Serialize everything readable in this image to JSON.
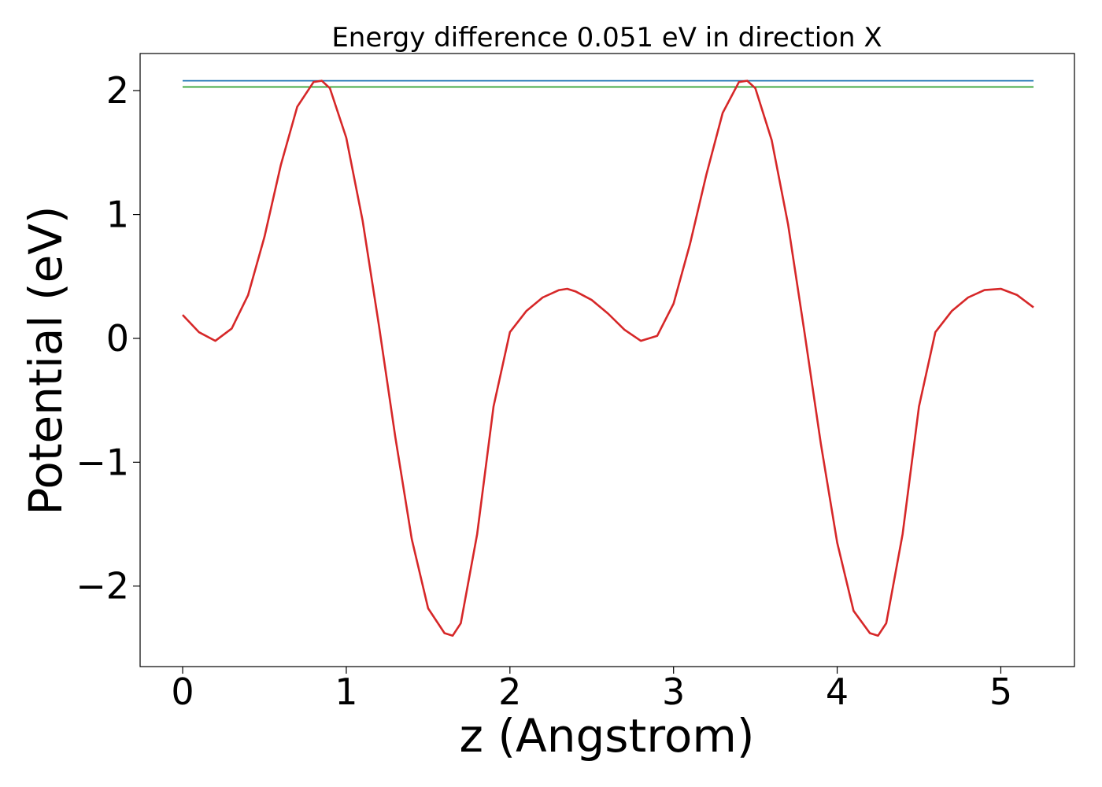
{
  "chart_data": {
    "type": "line",
    "title": "Energy difference 0.051 eV in direction X",
    "xlabel": "z (Angstrom)",
    "ylabel": "Potential (eV)",
    "xlim": [
      -0.26,
      5.45
    ],
    "ylim": [
      -2.65,
      2.3
    ],
    "xticks": [
      0,
      1,
      2,
      3,
      4,
      5
    ],
    "xtick_labels": [
      "0",
      "1",
      "2",
      "3",
      "4",
      "5"
    ],
    "yticks": [
      -2,
      -1,
      0,
      1,
      2
    ],
    "ytick_labels": [
      "−2",
      "−1",
      "0",
      "1",
      "2"
    ],
    "grid": false,
    "legend": "none",
    "series": [
      {
        "color": "#1f77b4",
        "x": [
          0,
          5.2
        ],
        "y": [
          2.08,
          2.08
        ]
      },
      {
        "color": "#2ca02c",
        "x": [
          0,
          5.2
        ],
        "y": [
          2.03,
          2.03
        ]
      },
      {
        "color": "#d62728",
        "x": [
          0,
          0.1,
          0.2,
          0.3,
          0.4,
          0.5,
          0.6,
          0.7,
          0.8,
          0.85,
          0.9,
          1.0,
          1.1,
          1.2,
          1.3,
          1.4,
          1.5,
          1.6,
          1.65,
          1.7,
          1.8,
          1.9,
          2.0,
          2.1,
          2.2,
          2.3,
          2.35,
          2.4,
          2.5,
          2.6,
          2.7,
          2.8,
          2.9,
          3.0,
          3.1,
          3.2,
          3.3,
          3.4,
          3.45,
          3.5,
          3.6,
          3.7,
          3.8,
          3.9,
          4.0,
          4.1,
          4.2,
          4.25,
          4.3,
          4.4,
          4.5,
          4.6,
          4.7,
          4.8,
          4.9,
          5.0,
          5.1,
          5.2
        ],
        "y": [
          0.19,
          0.05,
          -0.02,
          0.08,
          0.35,
          0.82,
          1.4,
          1.87,
          2.07,
          2.08,
          2.02,
          1.62,
          0.95,
          0.1,
          -0.8,
          -1.62,
          -2.18,
          -2.38,
          -2.4,
          -2.3,
          -1.58,
          -0.55,
          0.05,
          0.22,
          0.33,
          0.39,
          0.4,
          0.38,
          0.31,
          0.2,
          0.07,
          -0.02,
          0.02,
          0.28,
          0.76,
          1.32,
          1.82,
          2.07,
          2.08,
          2.02,
          1.6,
          0.92,
          0.05,
          -0.85,
          -1.65,
          -2.2,
          -2.38,
          -2.4,
          -2.3,
          -1.58,
          -0.55,
          0.05,
          0.22,
          0.33,
          0.39,
          0.4,
          0.35,
          0.25
        ]
      }
    ]
  }
}
